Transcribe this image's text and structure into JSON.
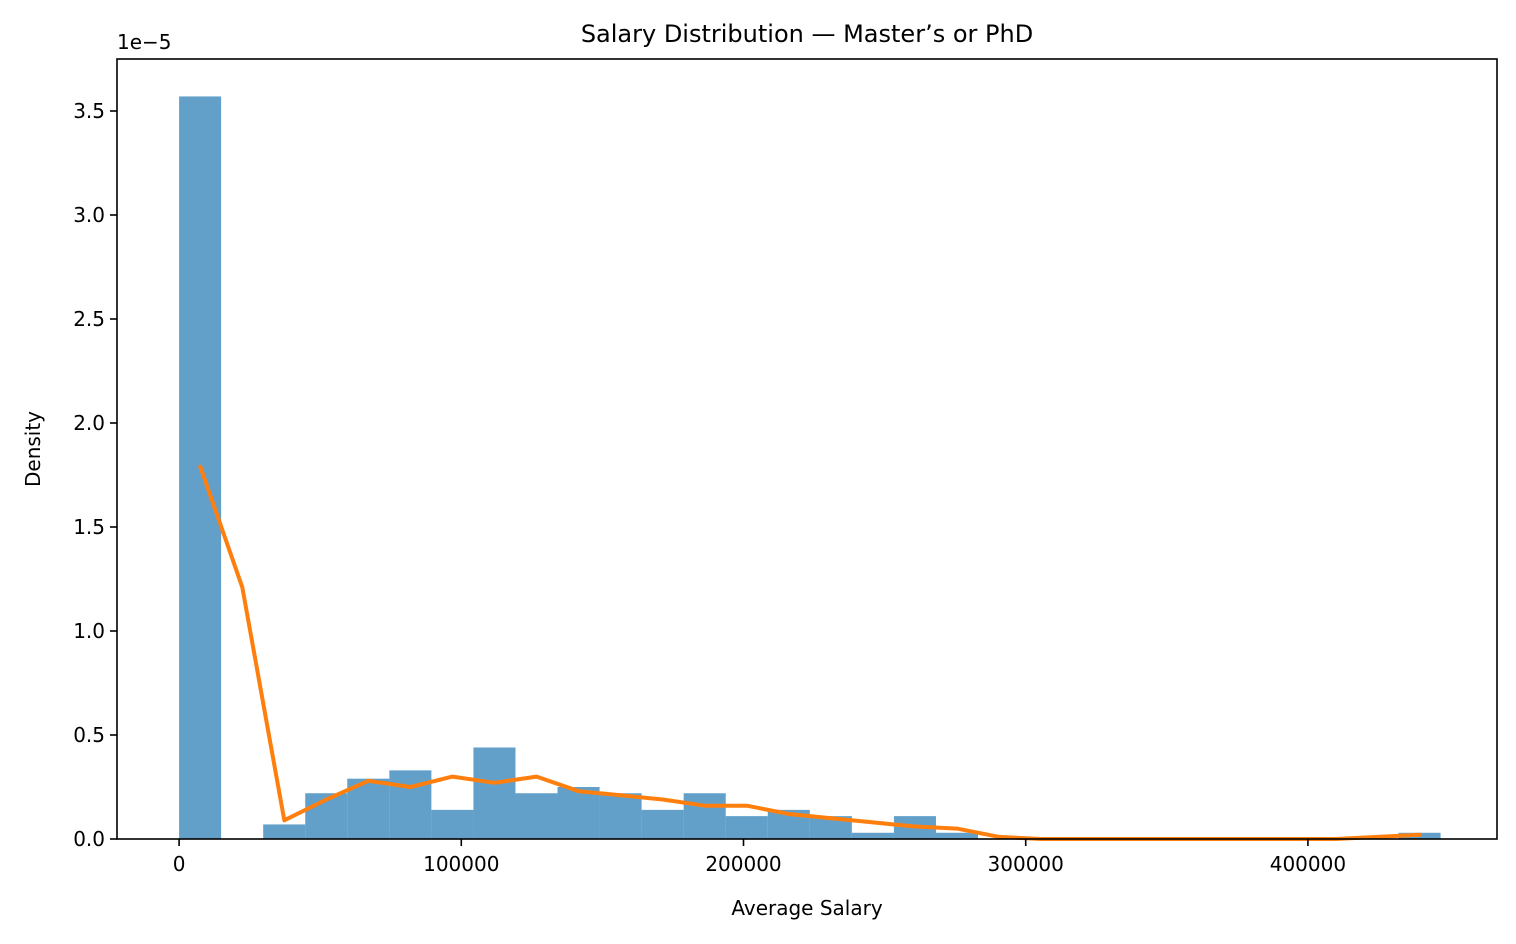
{
  "chart_data": {
    "type": "bar",
    "title": "Salary Distribution — Master’s or PhD",
    "xlabel": "Average Salary",
    "ylabel": "Density",
    "y_offset_label": "1e−5",
    "xlim": [
      -22000,
      467000
    ],
    "ylim": [
      0,
      3.75
    ],
    "x_ticks": [
      0,
      100000,
      200000,
      300000,
      400000
    ],
    "x_tick_labels": [
      "0",
      "100000",
      "200000",
      "300000",
      "400000"
    ],
    "y_ticks": [
      0,
      0.5,
      1.0,
      1.5,
      2.0,
      2.5,
      3.0,
      3.5
    ],
    "y_tick_labels": [
      "0.0",
      "0.5",
      "1.0",
      "1.5",
      "2.0",
      "2.5",
      "3.0",
      "3.5"
    ],
    "grid": false,
    "histogram": {
      "bin_edges": [
        0,
        14900,
        29800,
        44700,
        59600,
        74500,
        89400,
        104300,
        119200,
        134100,
        149000,
        163900,
        178800,
        193700,
        208600,
        223500,
        238400,
        253300,
        268200,
        283100,
        298000,
        312900,
        327800,
        342700,
        357600,
        372500,
        387400,
        402300,
        417200,
        432100,
        447000
      ],
      "values": [
        3.57,
        0,
        0.07,
        0.22,
        0.29,
        0.33,
        0.14,
        0.44,
        0.22,
        0.25,
        0.22,
        0.14,
        0.22,
        0.11,
        0.14,
        0.11,
        0.03,
        0.11,
        0.03,
        0,
        0,
        0,
        0,
        0,
        0,
        0,
        0,
        0,
        0,
        0.03
      ],
      "color": "#1f77b4",
      "opacity": 0.7
    },
    "density_line": {
      "color": "#ff7f0e",
      "x": [
        7500,
        22400,
        37300,
        52200,
        67100,
        82000,
        96900,
        111800,
        126700,
        141600,
        156500,
        171400,
        186300,
        201200,
        216100,
        231000,
        245900,
        260800,
        275700,
        290600,
        305500,
        320400,
        335300,
        350200,
        365100,
        380000,
        394900,
        409800,
        424700,
        439600
      ],
      "y": [
        1.79,
        1.21,
        0.09,
        0.19,
        0.28,
        0.25,
        0.3,
        0.27,
        0.3,
        0.23,
        0.21,
        0.19,
        0.16,
        0.16,
        0.12,
        0.1,
        0.08,
        0.06,
        0.05,
        0.01,
        0.0,
        0.0,
        0.0,
        0.0,
        0.0,
        0.0,
        0.0,
        0.0,
        0.01,
        0.02
      ]
    }
  }
}
